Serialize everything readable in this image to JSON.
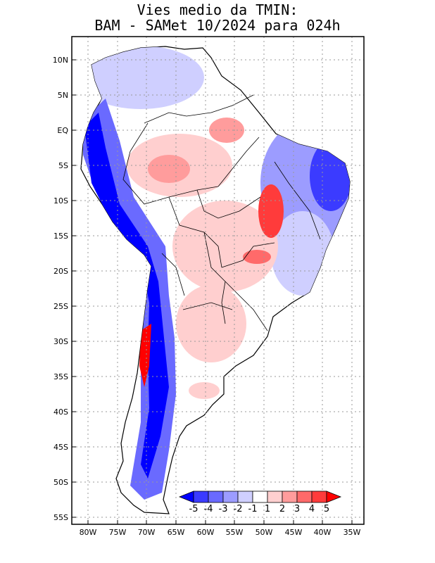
{
  "title": {
    "line1": "Vies medio da TMIN:",
    "line2": "BAM - SAMet 10/2024  para 024h"
  },
  "axes": {
    "lat_labels": [
      "10N",
      "5N",
      "EQ",
      "5S",
      "10S",
      "15S",
      "20S",
      "25S",
      "30S",
      "35S",
      "40S",
      "45S",
      "50S",
      "55S"
    ],
    "lon_labels": [
      "80W",
      "75W",
      "70W",
      "65W",
      "60W",
      "55W",
      "50W",
      "45W",
      "40W",
      "35W"
    ]
  },
  "colorbar": {
    "labels": [
      "-5",
      "-4",
      "-3",
      "-2",
      "-1",
      "1",
      "2",
      "3",
      "4",
      "5"
    ],
    "colors": [
      "#0000ff",
      "#3b3bff",
      "#6a6aff",
      "#9c9cff",
      "#cfcfff",
      "#ffffff",
      "#ffcfcf",
      "#ff9c9c",
      "#ff6a6a",
      "#ff3b3b",
      "#ff0000"
    ]
  },
  "colors": {
    "continent": "#ffffff",
    "ocean": "#ffffff",
    "grid": "#9a9a9a",
    "border": "#000000"
  }
}
